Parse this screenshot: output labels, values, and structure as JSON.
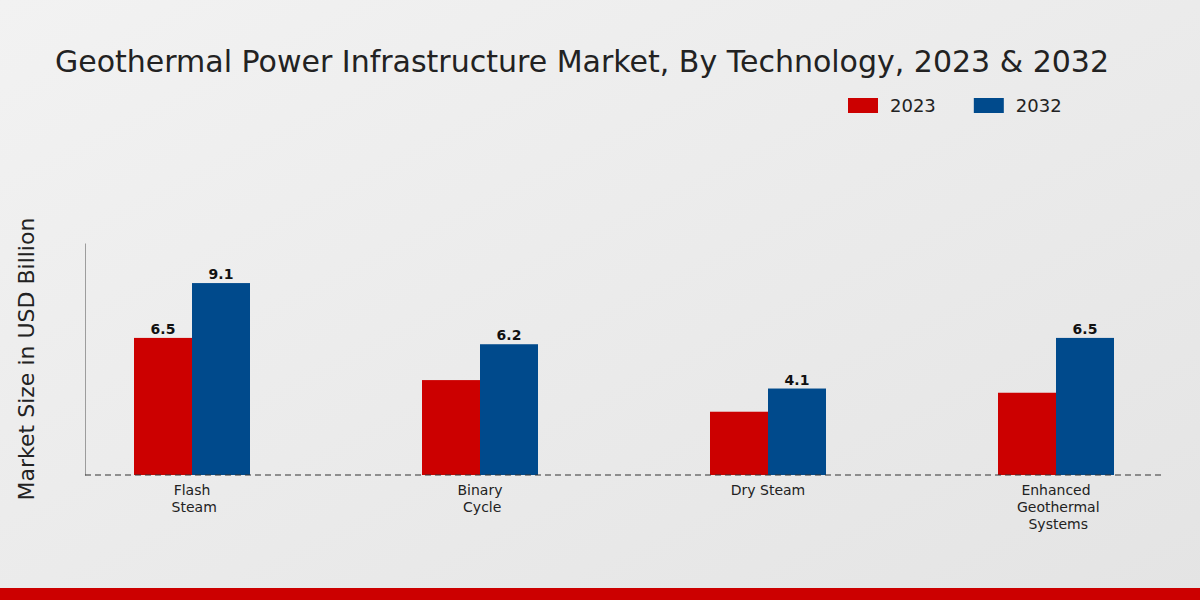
{
  "chart_data": {
    "type": "bar",
    "title": "Geothermal Power Infrastructure Market, By Technology, 2023 & 2032",
    "y_label": "Market Size in USD Billion",
    "categories": [
      "Flash Steam",
      "Binary Cycle",
      "Dry Steam",
      "Enhanced Geothermal Systems"
    ],
    "series": [
      {
        "name": "2023",
        "color": "#cc0000",
        "values": [
          6.5,
          4.5,
          3.0,
          3.9
        ],
        "value_labels": [
          "6.5",
          null,
          null,
          null
        ]
      },
      {
        "name": "2032",
        "color": "#004a8c",
        "values": [
          9.1,
          6.2,
          4.1,
          6.5
        ]
      }
    ],
    "ylim": [
      0,
      11
    ],
    "tick_labels": "x",
    "data_labels": true,
    "legend": "top-right",
    "grid": false
  }
}
